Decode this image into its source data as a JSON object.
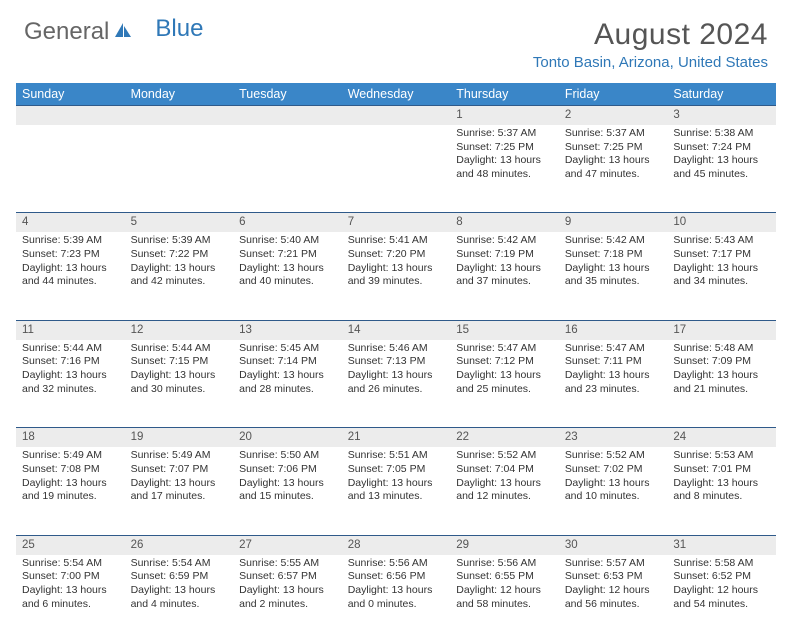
{
  "logo": {
    "part1": "General",
    "part2": "Blue"
  },
  "title": "August 2024",
  "location": "Tonto Basin, Arizona, United States",
  "colors": {
    "header_bg": "#3a86c8",
    "header_text": "#ffffff",
    "daynum_bg": "#ececec",
    "week_divider": "#2f5a8a",
    "accent_blue": "#2f78b7",
    "text": "#333333"
  },
  "day_headers": [
    "Sunday",
    "Monday",
    "Tuesday",
    "Wednesday",
    "Thursday",
    "Friday",
    "Saturday"
  ],
  "weeks": [
    {
      "nums": [
        "",
        "",
        "",
        "",
        "1",
        "2",
        "3"
      ],
      "cells": [
        null,
        null,
        null,
        null,
        {
          "sunrise": "Sunrise: 5:37 AM",
          "sunset": "Sunset: 7:25 PM",
          "day1": "Daylight: 13 hours",
          "day2": "and 48 minutes."
        },
        {
          "sunrise": "Sunrise: 5:37 AM",
          "sunset": "Sunset: 7:25 PM",
          "day1": "Daylight: 13 hours",
          "day2": "and 47 minutes."
        },
        {
          "sunrise": "Sunrise: 5:38 AM",
          "sunset": "Sunset: 7:24 PM",
          "day1": "Daylight: 13 hours",
          "day2": "and 45 minutes."
        }
      ]
    },
    {
      "nums": [
        "4",
        "5",
        "6",
        "7",
        "8",
        "9",
        "10"
      ],
      "cells": [
        {
          "sunrise": "Sunrise: 5:39 AM",
          "sunset": "Sunset: 7:23 PM",
          "day1": "Daylight: 13 hours",
          "day2": "and 44 minutes."
        },
        {
          "sunrise": "Sunrise: 5:39 AM",
          "sunset": "Sunset: 7:22 PM",
          "day1": "Daylight: 13 hours",
          "day2": "and 42 minutes."
        },
        {
          "sunrise": "Sunrise: 5:40 AM",
          "sunset": "Sunset: 7:21 PM",
          "day1": "Daylight: 13 hours",
          "day2": "and 40 minutes."
        },
        {
          "sunrise": "Sunrise: 5:41 AM",
          "sunset": "Sunset: 7:20 PM",
          "day1": "Daylight: 13 hours",
          "day2": "and 39 minutes."
        },
        {
          "sunrise": "Sunrise: 5:42 AM",
          "sunset": "Sunset: 7:19 PM",
          "day1": "Daylight: 13 hours",
          "day2": "and 37 minutes."
        },
        {
          "sunrise": "Sunrise: 5:42 AM",
          "sunset": "Sunset: 7:18 PM",
          "day1": "Daylight: 13 hours",
          "day2": "and 35 minutes."
        },
        {
          "sunrise": "Sunrise: 5:43 AM",
          "sunset": "Sunset: 7:17 PM",
          "day1": "Daylight: 13 hours",
          "day2": "and 34 minutes."
        }
      ]
    },
    {
      "nums": [
        "11",
        "12",
        "13",
        "14",
        "15",
        "16",
        "17"
      ],
      "cells": [
        {
          "sunrise": "Sunrise: 5:44 AM",
          "sunset": "Sunset: 7:16 PM",
          "day1": "Daylight: 13 hours",
          "day2": "and 32 minutes."
        },
        {
          "sunrise": "Sunrise: 5:44 AM",
          "sunset": "Sunset: 7:15 PM",
          "day1": "Daylight: 13 hours",
          "day2": "and 30 minutes."
        },
        {
          "sunrise": "Sunrise: 5:45 AM",
          "sunset": "Sunset: 7:14 PM",
          "day1": "Daylight: 13 hours",
          "day2": "and 28 minutes."
        },
        {
          "sunrise": "Sunrise: 5:46 AM",
          "sunset": "Sunset: 7:13 PM",
          "day1": "Daylight: 13 hours",
          "day2": "and 26 minutes."
        },
        {
          "sunrise": "Sunrise: 5:47 AM",
          "sunset": "Sunset: 7:12 PM",
          "day1": "Daylight: 13 hours",
          "day2": "and 25 minutes."
        },
        {
          "sunrise": "Sunrise: 5:47 AM",
          "sunset": "Sunset: 7:11 PM",
          "day1": "Daylight: 13 hours",
          "day2": "and 23 minutes."
        },
        {
          "sunrise": "Sunrise: 5:48 AM",
          "sunset": "Sunset: 7:09 PM",
          "day1": "Daylight: 13 hours",
          "day2": "and 21 minutes."
        }
      ]
    },
    {
      "nums": [
        "18",
        "19",
        "20",
        "21",
        "22",
        "23",
        "24"
      ],
      "cells": [
        {
          "sunrise": "Sunrise: 5:49 AM",
          "sunset": "Sunset: 7:08 PM",
          "day1": "Daylight: 13 hours",
          "day2": "and 19 minutes."
        },
        {
          "sunrise": "Sunrise: 5:49 AM",
          "sunset": "Sunset: 7:07 PM",
          "day1": "Daylight: 13 hours",
          "day2": "and 17 minutes."
        },
        {
          "sunrise": "Sunrise: 5:50 AM",
          "sunset": "Sunset: 7:06 PM",
          "day1": "Daylight: 13 hours",
          "day2": "and 15 minutes."
        },
        {
          "sunrise": "Sunrise: 5:51 AM",
          "sunset": "Sunset: 7:05 PM",
          "day1": "Daylight: 13 hours",
          "day2": "and 13 minutes."
        },
        {
          "sunrise": "Sunrise: 5:52 AM",
          "sunset": "Sunset: 7:04 PM",
          "day1": "Daylight: 13 hours",
          "day2": "and 12 minutes."
        },
        {
          "sunrise": "Sunrise: 5:52 AM",
          "sunset": "Sunset: 7:02 PM",
          "day1": "Daylight: 13 hours",
          "day2": "and 10 minutes."
        },
        {
          "sunrise": "Sunrise: 5:53 AM",
          "sunset": "Sunset: 7:01 PM",
          "day1": "Daylight: 13 hours",
          "day2": "and 8 minutes."
        }
      ]
    },
    {
      "nums": [
        "25",
        "26",
        "27",
        "28",
        "29",
        "30",
        "31"
      ],
      "cells": [
        {
          "sunrise": "Sunrise: 5:54 AM",
          "sunset": "Sunset: 7:00 PM",
          "day1": "Daylight: 13 hours",
          "day2": "and 6 minutes."
        },
        {
          "sunrise": "Sunrise: 5:54 AM",
          "sunset": "Sunset: 6:59 PM",
          "day1": "Daylight: 13 hours",
          "day2": "and 4 minutes."
        },
        {
          "sunrise": "Sunrise: 5:55 AM",
          "sunset": "Sunset: 6:57 PM",
          "day1": "Daylight: 13 hours",
          "day2": "and 2 minutes."
        },
        {
          "sunrise": "Sunrise: 5:56 AM",
          "sunset": "Sunset: 6:56 PM",
          "day1": "Daylight: 13 hours",
          "day2": "and 0 minutes."
        },
        {
          "sunrise": "Sunrise: 5:56 AM",
          "sunset": "Sunset: 6:55 PM",
          "day1": "Daylight: 12 hours",
          "day2": "and 58 minutes."
        },
        {
          "sunrise": "Sunrise: 5:57 AM",
          "sunset": "Sunset: 6:53 PM",
          "day1": "Daylight: 12 hours",
          "day2": "and 56 minutes."
        },
        {
          "sunrise": "Sunrise: 5:58 AM",
          "sunset": "Sunset: 6:52 PM",
          "day1": "Daylight: 12 hours",
          "day2": "and 54 minutes."
        }
      ]
    }
  ]
}
